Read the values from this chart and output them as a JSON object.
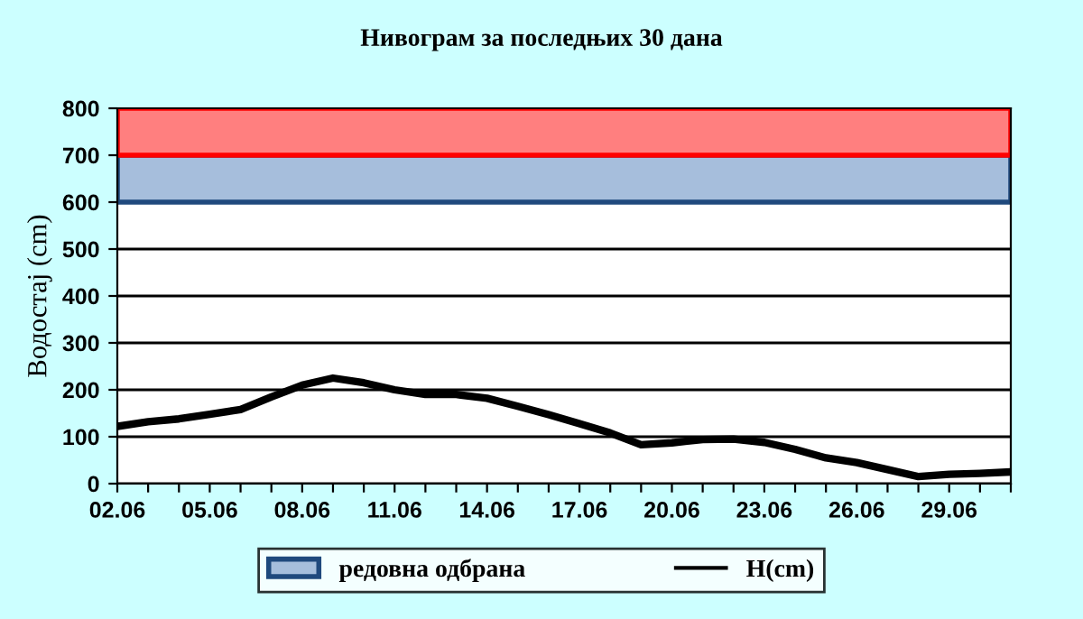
{
  "chart_data": {
    "type": "line",
    "title": "Нивограм за последњих 30 дана",
    "ylabel": "Водостај (cm)",
    "categories": [
      "02.06",
      null,
      null,
      "05.06",
      null,
      null,
      "08.06",
      null,
      null,
      "11.06",
      null,
      null,
      "14.06",
      null,
      null,
      "17.06",
      null,
      null,
      "20.06",
      null,
      null,
      "23.06",
      null,
      null,
      "26.06",
      null,
      null,
      "29.06",
      null,
      null
    ],
    "series": [
      {
        "name": "H(cm)",
        "color": "#000000",
        "values": [
          122,
          132,
          138,
          148,
          158,
          185,
          210,
          225,
          215,
          200,
          190,
          190,
          182,
          165,
          147,
          128,
          108,
          83,
          87,
          94,
          95,
          88,
          73,
          55,
          45,
          30,
          15,
          20,
          22,
          25
        ]
      }
    ],
    "ylim": [
      0,
      800
    ],
    "yticks": [
      0,
      100,
      200,
      300,
      400,
      500,
      600,
      700,
      800
    ],
    "bands": [
      {
        "axis": "y",
        "from": 600,
        "to": 700,
        "label": "редовна одбрана",
        "color": "#a6bedc"
      },
      {
        "axis": "y",
        "from": 700,
        "to": 800,
        "label": null,
        "color": "#ff7f7f"
      }
    ],
    "grid": "y",
    "legend": "bottom",
    "marker": "none",
    "line_style": "solid"
  }
}
